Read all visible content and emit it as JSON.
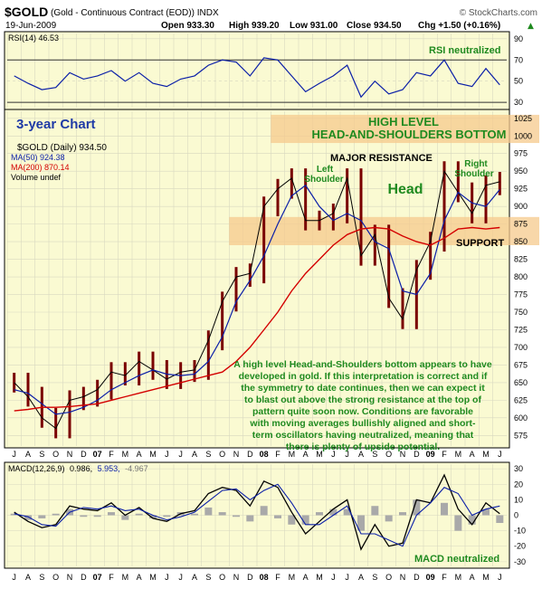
{
  "header": {
    "symbol": "$GOLD",
    "description": "(Gold - Continuous Contract (EOD)) INDX",
    "source": "© StockCharts.com",
    "date": "19-Jun-2009",
    "open": "Open 933.30",
    "high": "High 939.20",
    "low": "Low 931.00",
    "close": "Close 934.50",
    "change": "Chg +1.50 (+0.16%)",
    "change_arrow": "▲"
  },
  "rsi_panel": {
    "label": "RSI(14) 46.53",
    "annotation": "RSI neutralized",
    "ticks": [
      "90",
      "70",
      "50",
      "30"
    ]
  },
  "price_panel": {
    "legend": [
      {
        "text": "$GOLD (Daily) 934.50",
        "color": "#000000"
      },
      {
        "text": "MA(50) 924.38",
        "color": "#0b1fa8"
      },
      {
        "text": "MA(200) 870.14",
        "color": "#d40000"
      },
      {
        "text": "Volume undef",
        "color": "#000000"
      }
    ],
    "chart_title": "3-year Chart",
    "pattern_title_1": "HIGH LEVEL",
    "pattern_title_2": "HEAD-AND-SHOULDERS BOTTOM",
    "resistance_label": "MAJOR RESISTANCE",
    "support_label": "SUPPORT",
    "left_shoulder_1": "Left",
    "left_shoulder_2": "Shoulder",
    "head_label": "Head",
    "right_shoulder_1": "Right",
    "right_shoulder_2": "Shoulder",
    "commentary": [
      "A high level Head-and-Shoulders bottom appears to have",
      "developed in gold. If this interpretation is correct and if",
      "the symmetry to date continues, then we can expect it",
      "to blast out above the strong resistance at the top of",
      "pattern quite soon now. Conditions are favorable",
      "with moving averages bullishly aligned and short-",
      "term oscillators having neutralized, meaning that",
      "there is plenty of upside potential."
    ],
    "y_ticks": [
      "1025",
      "1000",
      "975",
      "950",
      "925",
      "900",
      "875",
      "850",
      "825",
      "800",
      "775",
      "750",
      "725",
      "700",
      "675",
      "650",
      "625",
      "600",
      "575"
    ]
  },
  "macd_panel": {
    "label_prefix": "MACD(12,26,9)",
    "macd_value": "0.986,",
    "signal_value": "5.953,",
    "hist_value": "-4.967",
    "annotation": "MACD neutralized",
    "ticks": [
      "30",
      "20",
      "10",
      "0",
      "-10",
      "-20",
      "-30"
    ]
  },
  "x_axis": {
    "labels": [
      "J",
      "A",
      "S",
      "O",
      "N",
      "D",
      "07",
      "F",
      "M",
      "A",
      "M",
      "J",
      "J",
      "A",
      "S",
      "O",
      "N",
      "D",
      "08",
      "F",
      "M",
      "A",
      "M",
      "J",
      "J",
      "A",
      "S",
      "O",
      "N",
      "D",
      "09",
      "F",
      "M",
      "A",
      "M",
      "J"
    ]
  },
  "colors": {
    "panel_bg": "#fafad2",
    "price_bar": "#7a0000",
    "ma50": "#0b1fa8",
    "ma200": "#d40000",
    "zone": "#f5c98c",
    "annotation_green": "#1f8a1f",
    "annotation_blue": "#1f3aa6",
    "rsi_fill": "#0b1fa8"
  },
  "chart_data": {
    "type": "line",
    "title": "$GOLD (Gold - Continuous Contract (EOD)) INDX",
    "period": "Jul 2006 - Jun 2009 (daily)",
    "months": [
      "Jul 06",
      "Aug 06",
      "Sep 06",
      "Oct 06",
      "Nov 06",
      "Dec 06",
      "Jan 07",
      "Feb 07",
      "Mar 07",
      "Apr 07",
      "May 07",
      "Jun 07",
      "Jul 07",
      "Aug 07",
      "Sep 07",
      "Oct 07",
      "Nov 07",
      "Dec 07",
      "Jan 08",
      "Feb 08",
      "Mar 08",
      "Apr 08",
      "May 08",
      "Jun 08",
      "Jul 08",
      "Aug 08",
      "Sep 08",
      "Oct 08",
      "Nov 08",
      "Dec 08",
      "Jan 09",
      "Feb 09",
      "Mar 09",
      "Apr 09",
      "May 09",
      "Jun 09"
    ],
    "series": [
      {
        "name": "$GOLD",
        "values": [
          650,
          630,
          600,
          585,
          625,
          630,
          640,
          665,
          660,
          680,
          668,
          655,
          665,
          668,
          710,
          765,
          800,
          805,
          900,
          925,
          940,
          880,
          880,
          890,
          940,
          830,
          860,
          770,
          740,
          810,
          850,
          950,
          920,
          890,
          930,
          935
        ]
      },
      {
        "name": "MA(50)",
        "values": [
          640,
          635,
          620,
          605,
          608,
          615,
          625,
          640,
          650,
          660,
          668,
          662,
          660,
          662,
          680,
          715,
          765,
          795,
          830,
          875,
          915,
          930,
          900,
          880,
          890,
          880,
          850,
          840,
          780,
          775,
          805,
          880,
          920,
          905,
          900,
          924
        ]
      },
      {
        "name": "MA(200)",
        "values": [
          610,
          612,
          615,
          615,
          616,
          618,
          620,
          625,
          630,
          635,
          640,
          645,
          650,
          655,
          660,
          665,
          680,
          700,
          725,
          750,
          780,
          805,
          825,
          845,
          860,
          868,
          870,
          868,
          858,
          850,
          845,
          855,
          868,
          870,
          868,
          870
        ]
      }
    ],
    "price_ylim": [
      560,
      1035
    ],
    "price_yticks": [
      575,
      600,
      625,
      650,
      675,
      700,
      725,
      750,
      775,
      800,
      825,
      850,
      875,
      900,
      925,
      950,
      975,
      1000,
      1025
    ],
    "resistance_zone": [
      990,
      1030
    ],
    "support_zone": [
      845,
      885
    ],
    "rsi": {
      "values": [
        55,
        48,
        42,
        44,
        58,
        52,
        55,
        60,
        50,
        58,
        48,
        45,
        52,
        55,
        65,
        70,
        68,
        55,
        72,
        70,
        55,
        40,
        48,
        55,
        65,
        35,
        50,
        38,
        42,
        58,
        55,
        70,
        48,
        45,
        62,
        46.53
      ],
      "ylim": [
        25,
        95
      ],
      "yticks": [
        30,
        50,
        70,
        90
      ],
      "overbought": 70,
      "oversold": 30
    },
    "macd": {
      "macd": [
        2,
        -4,
        -8,
        -6,
        6,
        4,
        3,
        8,
        0,
        5,
        -2,
        -4,
        1,
        3,
        14,
        18,
        16,
        6,
        22,
        18,
        2,
        -12,
        -4,
        4,
        10,
        -22,
        -6,
        -20,
        -18,
        10,
        8,
        26,
        4,
        -6,
        8,
        0.986
      ],
      "signal": [
        1,
        -1,
        -6,
        -7,
        2,
        5,
        4,
        6,
        3,
        4,
        0,
        -3,
        -1,
        2,
        9,
        16,
        17,
        10,
        16,
        20,
        8,
        -6,
        -6,
        0,
        6,
        -12,
        -12,
        -16,
        -20,
        0,
        8,
        18,
        14,
        0,
        4,
        5.953
      ],
      "hist_last": -4.967,
      "ylim": [
        -33,
        33
      ],
      "yticks": [
        -30,
        -20,
        -10,
        0,
        10,
        20,
        30
      ]
    }
  }
}
